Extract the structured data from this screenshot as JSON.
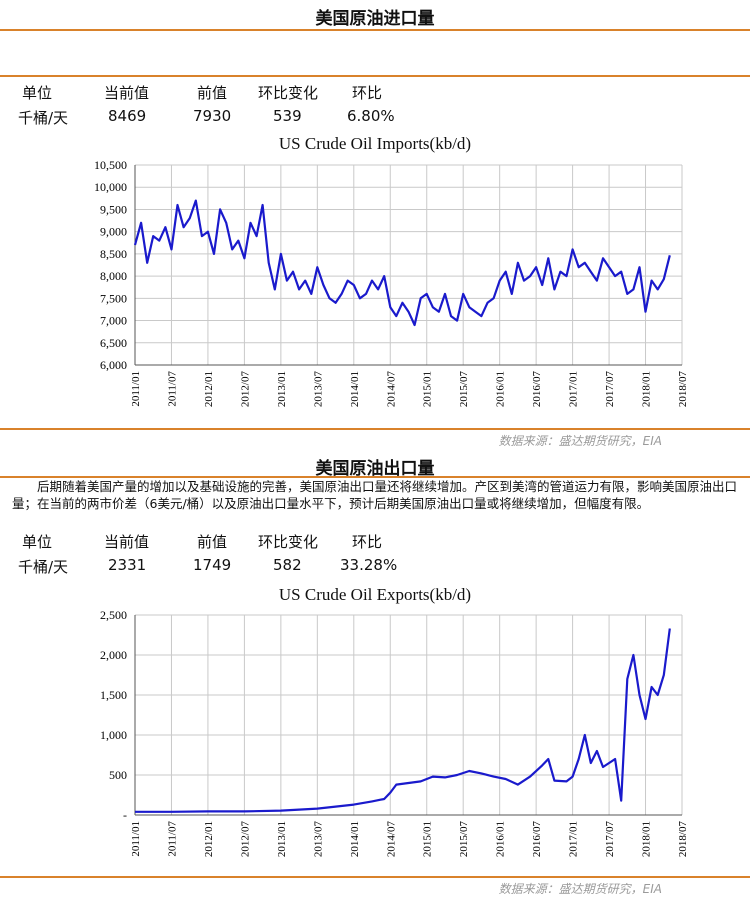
{
  "imports_section": {
    "title": "美国原油进口量",
    "metric_headers": [
      "单位",
      "当前值",
      "前值",
      "环比变化",
      "环比"
    ],
    "metric_values": [
      "千桶/天",
      "8469",
      "7930",
      "539",
      "6.80%"
    ],
    "source": "数据来源：盛达期货研究，EIA"
  },
  "exports_section": {
    "title": "美国原油出口量",
    "paragraph": "后期随着美国产量的增加以及基础设施的完善，美国原油出口量还将继续增加。产区到美湾的管道运力有限，影响美国原油出口量；在当前的两市价差（6美元/桶）以及原油出口量水平下，预计后期美国原油出口量或将继续增加，但幅度有限。",
    "metric_headers": [
      "单位",
      "当前值",
      "前值",
      "环比变化",
      "环比"
    ],
    "metric_values": [
      "千桶/天",
      "2331",
      "1749",
      "582",
      "33.28%"
    ],
    "source": "数据来源：盛达期货研究，EIA"
  },
  "colors": {
    "series": "#1a1acc",
    "rule": "#d9822b",
    "grid": "#c9c9c9",
    "source_text": "#9a9a9a"
  },
  "chart_data": [
    {
      "type": "line",
      "title": "US Crude Oil Imports(kb/d)",
      "xlabel": "",
      "ylabel": "",
      "xlim": [
        "2011-01",
        "2018-07"
      ],
      "ylim": [
        6000,
        10500
      ],
      "y_ticks": [
        6000,
        6500,
        7000,
        7500,
        8000,
        8500,
        9000,
        9500,
        10000,
        10500
      ],
      "y_tick_labels": [
        "6,000",
        "6,500",
        "7,000",
        "7,500",
        "8,000",
        "8,500",
        "9,000",
        "9,500",
        "10,000",
        "10,500"
      ],
      "x_tick_labels": [
        "2011/01",
        "2011/07",
        "2012/01",
        "2012/07",
        "2013/01",
        "2013/07",
        "2014/01",
        "2014/07",
        "2015/01",
        "2015/07",
        "2016/01",
        "2016/07",
        "2017/01",
        "2017/07",
        "2018/01",
        "2018/07"
      ],
      "grid": true,
      "series": [
        {
          "x": [
            "2011-01",
            "2011-02",
            "2011-03",
            "2011-04",
            "2011-05",
            "2011-06",
            "2011-07",
            "2011-08",
            "2011-09",
            "2011-10",
            "2011-11",
            "2011-12",
            "2012-01",
            "2012-02",
            "2012-03",
            "2012-04",
            "2012-05",
            "2012-06",
            "2012-07",
            "2012-08",
            "2012-09",
            "2012-10",
            "2012-11",
            "2012-12",
            "2013-01",
            "2013-02",
            "2013-03",
            "2013-04",
            "2013-05",
            "2013-06",
            "2013-07",
            "2013-08",
            "2013-09",
            "2013-10",
            "2013-11",
            "2013-12",
            "2014-01",
            "2014-02",
            "2014-03",
            "2014-04",
            "2014-05",
            "2014-06",
            "2014-07",
            "2014-08",
            "2014-09",
            "2014-10",
            "2014-11",
            "2014-12",
            "2015-01",
            "2015-02",
            "2015-03",
            "2015-04",
            "2015-05",
            "2015-06",
            "2015-07",
            "2015-08",
            "2015-09",
            "2015-10",
            "2015-11",
            "2015-12",
            "2016-01",
            "2016-02",
            "2016-03",
            "2016-04",
            "2016-05",
            "2016-06",
            "2016-07",
            "2016-08",
            "2016-09",
            "2016-10",
            "2016-11",
            "2016-12",
            "2017-01",
            "2017-02",
            "2017-03",
            "2017-04",
            "2017-05",
            "2017-06",
            "2017-07",
            "2017-08",
            "2017-09",
            "2017-10",
            "2017-11",
            "2017-12",
            "2018-01",
            "2018-02",
            "2018-03",
            "2018-04",
            "2018-05"
          ],
          "values": [
            8700,
            9200,
            8300,
            8900,
            8800,
            9100,
            8600,
            9600,
            9100,
            9300,
            9700,
            8900,
            9000,
            8500,
            9500,
            9200,
            8600,
            8800,
            8400,
            9200,
            8900,
            9600,
            8300,
            7700,
            8500,
            7900,
            8100,
            7700,
            7900,
            7600,
            8200,
            7800,
            7500,
            7400,
            7600,
            7900,
            7800,
            7500,
            7600,
            7900,
            7700,
            8000,
            7300,
            7100,
            7400,
            7200,
            6900,
            7500,
            7600,
            7300,
            7200,
            7600,
            7100,
            7000,
            7600,
            7300,
            7200,
            7100,
            7400,
            7500,
            7900,
            8100,
            7600,
            8300,
            7900,
            8000,
            8200,
            7800,
            8400,
            7700,
            8100,
            8000,
            8600,
            8200,
            8300,
            8100,
            7900,
            8400,
            8200,
            8000,
            8100,
            7600,
            7700,
            8200,
            7200,
            7900,
            7700,
            7930,
            8469
          ]
        }
      ]
    },
    {
      "type": "line",
      "title": "US Crude Oil Exports(kb/d)",
      "xlabel": "",
      "ylabel": "",
      "xlim": [
        "2011-01",
        "2018-07"
      ],
      "ylim": [
        0,
        2500
      ],
      "y_ticks": [
        0,
        500,
        1000,
        1500,
        2000,
        2500
      ],
      "y_tick_labels": [
        "-",
        "500",
        "1,000",
        "1,500",
        "2,000",
        "2,500"
      ],
      "x_tick_labels": [
        "2011/01",
        "2011/07",
        "2012/01",
        "2012/07",
        "2013/01",
        "2013/07",
        "2014/01",
        "2014/07",
        "2015/01",
        "2015/07",
        "2016/01",
        "2016/07",
        "2017/01",
        "2017/07",
        "2018/01",
        "2018/07"
      ],
      "grid": true,
      "series": [
        {
          "x": [
            "2011-01",
            "2011-07",
            "2012-01",
            "2012-07",
            "2013-01",
            "2013-07",
            "2014-01",
            "2014-04",
            "2014-06",
            "2014-07",
            "2014-08",
            "2014-10",
            "2014-12",
            "2015-02",
            "2015-04",
            "2015-06",
            "2015-08",
            "2015-10",
            "2015-12",
            "2016-02",
            "2016-04",
            "2016-06",
            "2016-08",
            "2016-09",
            "2016-10",
            "2016-12",
            "2017-01",
            "2017-02",
            "2017-03",
            "2017-04",
            "2017-05",
            "2017-06",
            "2017-07",
            "2017-08",
            "2017-09",
            "2017-10",
            "2017-11",
            "2017-12",
            "2018-01",
            "2018-02",
            "2018-03",
            "2018-04",
            "2018-05"
          ],
          "values": [
            40,
            40,
            45,
            45,
            55,
            80,
            130,
            170,
            200,
            280,
            380,
            400,
            420,
            480,
            470,
            500,
            550,
            520,
            480,
            450,
            380,
            480,
            620,
            700,
            430,
            420,
            480,
            700,
            1000,
            650,
            800,
            600,
            650,
            700,
            180,
            1700,
            2000,
            1500,
            1200,
            1600,
            1500,
            1749,
            2331
          ]
        }
      ]
    }
  ]
}
